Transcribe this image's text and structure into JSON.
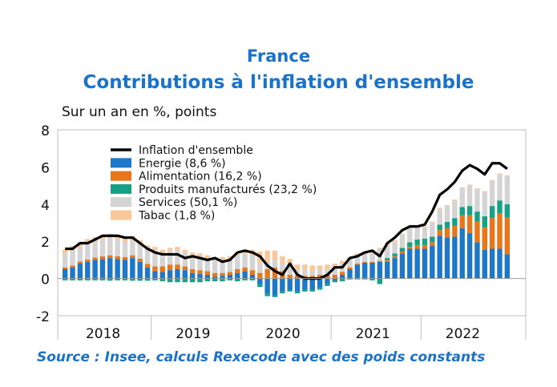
{
  "title": "France",
  "subtitle": "Contributions à l'inflation d'ensemble",
  "unit_label": "Sur un an en %, points",
  "source": "Source : Insee, calculs Rexecode avec des poids constants",
  "colors": {
    "title": "#1a73c9",
    "energie": "#1f77c8",
    "alimentation": "#e8761a",
    "produits": "#16a086",
    "services": "#d4d4d4",
    "tabac": "#f9c79a",
    "inflation": "#000000"
  },
  "chart_data": {
    "type": "bar",
    "stacked": true,
    "x_start": "2018-01",
    "x_end": "2022-12",
    "categories": [
      "2018-01",
      "2018-02",
      "2018-03",
      "2018-04",
      "2018-05",
      "2018-06",
      "2018-07",
      "2018-08",
      "2018-09",
      "2018-10",
      "2018-11",
      "2018-12",
      "2019-01",
      "2019-02",
      "2019-03",
      "2019-04",
      "2019-05",
      "2019-06",
      "2019-07",
      "2019-08",
      "2019-09",
      "2019-10",
      "2019-11",
      "2019-12",
      "2020-01",
      "2020-02",
      "2020-03",
      "2020-04",
      "2020-05",
      "2020-06",
      "2020-07",
      "2020-08",
      "2020-09",
      "2020-10",
      "2020-11",
      "2020-12",
      "2021-01",
      "2021-02",
      "2021-03",
      "2021-04",
      "2021-05",
      "2021-06",
      "2021-07",
      "2021-08",
      "2021-09",
      "2021-10",
      "2021-11",
      "2021-12",
      "2022-01",
      "2022-02",
      "2022-03",
      "2022-04",
      "2022-05",
      "2022-06",
      "2022-07",
      "2022-08",
      "2022-09",
      "2022-10",
      "2022-11",
      "2022-12"
    ],
    "x_tick_labels": [
      "2018",
      "2019",
      "2020",
      "2021",
      "2022"
    ],
    "ylim": [
      -2,
      8
    ],
    "yticks": [
      -2,
      0,
      2,
      4,
      6,
      8
    ],
    "legend_position": "top-left",
    "grid": false,
    "series": [
      {
        "name": "Energie (8,6 %)",
        "key": "energie",
        "values": [
          0.5,
          0.6,
          0.8,
          0.9,
          1.0,
          1.05,
          1.1,
          1.05,
          1.0,
          1.1,
          0.9,
          0.6,
          0.4,
          0.35,
          0.45,
          0.5,
          0.45,
          0.3,
          0.25,
          0.2,
          0.1,
          0.15,
          0.2,
          0.3,
          0.4,
          0.2,
          -0.3,
          -0.8,
          -0.9,
          -0.7,
          -0.6,
          -0.7,
          -0.6,
          -0.6,
          -0.5,
          -0.3,
          -0.1,
          0.2,
          0.5,
          0.75,
          0.85,
          0.85,
          0.9,
          0.9,
          1.1,
          1.35,
          1.6,
          1.6,
          1.6,
          1.75,
          2.3,
          2.2,
          2.25,
          2.7,
          2.45,
          1.95,
          1.55,
          1.6,
          1.6,
          1.3
        ]
      },
      {
        "name": "Alimentation (16,2 %)",
        "key": "alimentation",
        "values": [
          0.1,
          0.1,
          0.12,
          0.12,
          0.13,
          0.14,
          0.15,
          0.15,
          0.15,
          0.15,
          0.16,
          0.18,
          0.25,
          0.3,
          0.3,
          0.25,
          0.2,
          0.2,
          0.2,
          0.2,
          0.2,
          0.15,
          0.15,
          0.2,
          0.2,
          0.25,
          0.3,
          0.5,
          0.6,
          0.4,
          0.2,
          0.15,
          0.15,
          0.15,
          0.2,
          0.2,
          0.2,
          0.15,
          0.1,
          0.05,
          0.05,
          0.05,
          0.05,
          0.1,
          0.1,
          0.1,
          0.1,
          0.2,
          0.2,
          0.2,
          0.3,
          0.5,
          0.6,
          0.7,
          0.95,
          1.1,
          1.2,
          1.65,
          1.9,
          2.0
        ]
      },
      {
        "name": "Produits manufacturés (23,2 %)",
        "key": "produits",
        "values": [
          -0.1,
          -0.1,
          -0.1,
          -0.1,
          -0.1,
          -0.1,
          -0.12,
          -0.1,
          -0.1,
          -0.12,
          -0.12,
          -0.12,
          -0.1,
          -0.15,
          -0.2,
          -0.2,
          -0.2,
          -0.2,
          -0.2,
          -0.15,
          -0.15,
          -0.15,
          -0.1,
          -0.15,
          -0.1,
          -0.1,
          -0.15,
          -0.15,
          -0.1,
          -0.1,
          -0.1,
          -0.1,
          -0.1,
          -0.1,
          -0.1,
          -0.1,
          -0.1,
          -0.15,
          -0.05,
          -0.05,
          -0.05,
          -0.1,
          -0.3,
          0.1,
          0.15,
          0.2,
          0.25,
          0.3,
          0.35,
          0.3,
          0.3,
          0.35,
          0.4,
          0.45,
          0.5,
          0.55,
          0.6,
          0.65,
          0.7,
          0.7
        ]
      },
      {
        "name": "Services (50,1 %)",
        "key": "services",
        "values": [
          0.75,
          0.8,
          0.75,
          0.85,
          0.85,
          0.9,
          0.95,
          0.9,
          0.85,
          0.8,
          0.75,
          0.8,
          0.85,
          0.75,
          0.75,
          0.8,
          0.75,
          0.75,
          0.75,
          0.7,
          0.7,
          0.7,
          0.7,
          0.75,
          0.75,
          0.8,
          0.55,
          0.4,
          0.4,
          0.4,
          0.55,
          0.3,
          0.3,
          0.25,
          0.25,
          0.3,
          0.4,
          0.45,
          0.4,
          0.45,
          0.45,
          0.45,
          0.6,
          0.7,
          0.6,
          0.7,
          0.75,
          0.65,
          0.6,
          0.75,
          0.85,
          0.85,
          0.95,
          1.0,
          1.1,
          1.2,
          1.3,
          1.35,
          1.4,
          1.5
        ]
      },
      {
        "name": "Tabac (1,8 %)",
        "key": "tabac",
        "values": [
          0.2,
          0.25,
          0.3,
          0.25,
          0.25,
          0.2,
          0.2,
          0.2,
          0.25,
          0.25,
          0.25,
          0.2,
          0.2,
          0.15,
          0.15,
          0.15,
          0.15,
          0.15,
          0.15,
          0.15,
          0.15,
          0.15,
          0.15,
          0.15,
          0.15,
          0.3,
          0.6,
          0.6,
          0.5,
          0.4,
          0.3,
          0.3,
          0.3,
          0.3,
          0.25,
          0.25,
          0.2,
          0.15,
          0.1,
          0.1,
          0.1,
          0.1,
          0.1,
          0.1,
          0.1,
          0.05,
          0.05,
          0.05,
          0.05,
          0.05,
          0.05,
          0.05,
          0.05,
          0.05,
          0.05,
          0.05,
          0.05,
          0.05,
          0.05,
          0.05
        ]
      },
      {
        "name": "Inflation d'ensemble",
        "key": "inflation",
        "type": "line",
        "values": [
          1.6,
          1.6,
          1.9,
          1.9,
          2.1,
          2.3,
          2.3,
          2.3,
          2.2,
          2.2,
          1.9,
          1.6,
          1.4,
          1.3,
          1.3,
          1.3,
          1.1,
          1.2,
          1.1,
          1.0,
          1.1,
          0.9,
          1.0,
          1.4,
          1.5,
          1.4,
          1.2,
          0.7,
          0.4,
          0.2,
          0.8,
          0.2,
          0.0,
          0.0,
          0.0,
          0.2,
          0.6,
          0.6,
          1.1,
          1.2,
          1.4,
          1.5,
          1.2,
          1.9,
          2.2,
          2.6,
          2.8,
          2.8,
          2.9,
          3.6,
          4.5,
          4.8,
          5.2,
          5.8,
          6.1,
          5.9,
          5.6,
          6.2,
          6.2,
          5.9
        ]
      }
    ]
  }
}
